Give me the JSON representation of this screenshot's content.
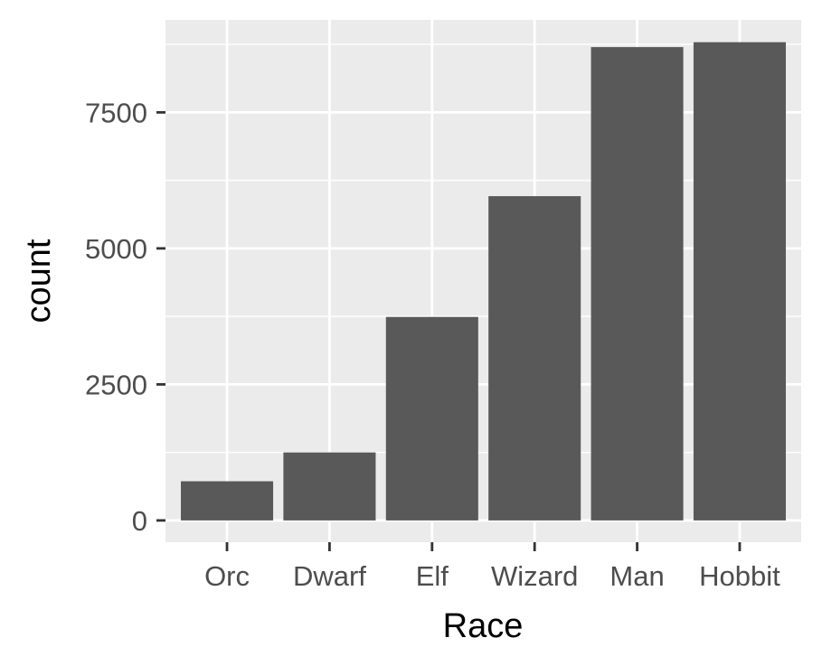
{
  "chart_data": {
    "type": "bar",
    "categories": [
      "Orc",
      "Dwarf",
      "Elf",
      "Wizard",
      "Man",
      "Hobbit"
    ],
    "values": [
      720,
      1250,
      3740,
      5960,
      8700,
      8790
    ],
    "xlabel": "Race",
    "ylabel": "count",
    "ylim": [
      -400,
      9200
    ],
    "yticks": [
      0,
      2500,
      5000,
      7500
    ],
    "ytick_labels": [
      "0",
      "2500",
      "5000",
      "7500"
    ],
    "minor_yticks": [
      1250,
      3750,
      6250,
      8750
    ],
    "grid": true,
    "legend": "none",
    "colors": {
      "bar": "#595959",
      "panel": "#ebebeb",
      "grid": "#ffffff",
      "tick": "#333333",
      "tick_label": "#4d4d4d"
    }
  }
}
